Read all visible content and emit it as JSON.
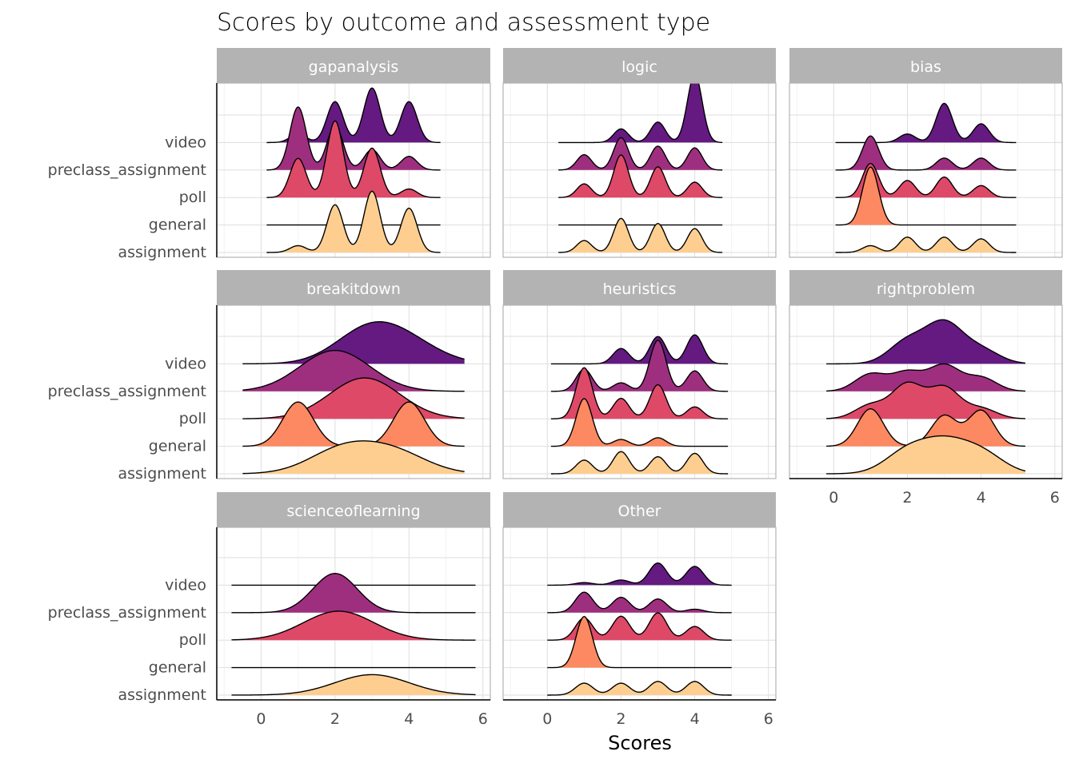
{
  "chart_data": {
    "type": "ridgeline",
    "title": "Scores by outcome and assessment type",
    "xlabel": "Scores",
    "ylabel": "",
    "xlim": [
      -1.2,
      6.2
    ],
    "x_ticks": [
      0,
      2,
      4,
      6
    ],
    "x_tick_labels": [
      "0",
      "2",
      "4",
      "6"
    ],
    "y_categories": [
      "assignment",
      "general",
      "poll",
      "preclass_assignment",
      "video"
    ],
    "colors": {
      "assignment": "#FECE91",
      "general": "#FC8961",
      "poll": "#DE4968",
      "preclass_assignment": "#9E2F7F",
      "video": "#641A80"
    },
    "grid": true,
    "legend": "none",
    "panels": [
      {
        "name": "gapanalysis",
        "ridges": [
          {
            "category": "assignment",
            "range": [
              0.15,
              4.85
            ],
            "sd": 0.22,
            "scale": 0.62,
            "peaks": [
              [
                1,
                0.4
              ],
              [
                2,
                2.8
              ],
              [
                3,
                3.6
              ],
              [
                4,
                2.6
              ]
            ]
          },
          {
            "category": "general",
            "range": [
              0.15,
              4.85
            ],
            "sd": 0.22,
            "scale": 0.62,
            "peaks": []
          },
          {
            "category": "poll",
            "range": [
              0.15,
              4.85
            ],
            "sd": 0.22,
            "scale": 0.62,
            "peaks": [
              [
                1,
                2.3
              ],
              [
                2,
                4.5
              ],
              [
                3,
                2.9
              ],
              [
                4,
                0.5
              ]
            ]
          },
          {
            "category": "preclass_assignment",
            "range": [
              0.15,
              4.85
            ],
            "sd": 0.22,
            "scale": 0.62,
            "peaks": [
              [
                1,
                3.7
              ],
              [
                2,
                2.6
              ],
              [
                3,
                1.2
              ],
              [
                4,
                0.8
              ]
            ]
          },
          {
            "category": "video",
            "range": [
              0.15,
              4.85
            ],
            "sd": 0.22,
            "scale": 0.62,
            "peaks": [
              [
                1,
                0.5
              ],
              [
                2,
                2.4
              ],
              [
                3,
                3.2
              ],
              [
                4,
                2.4
              ]
            ]
          }
        ]
      },
      {
        "name": "logic",
        "ridges": [
          {
            "category": "assignment",
            "range": [
              0.3,
              4.75
            ],
            "sd": 0.2,
            "scale": 0.62,
            "peaks": [
              [
                1,
                0.7
              ],
              [
                2,
                2.0
              ],
              [
                3,
                1.7
              ],
              [
                4,
                1.4
              ]
            ]
          },
          {
            "category": "general",
            "range": [
              0.3,
              4.75
            ],
            "sd": 0.2,
            "scale": 0.62,
            "peaks": []
          },
          {
            "category": "poll",
            "range": [
              0.3,
              4.75
            ],
            "sd": 0.2,
            "scale": 0.62,
            "peaks": [
              [
                1,
                0.8
              ],
              [
                2,
                2.5
              ],
              [
                3,
                1.8
              ],
              [
                4,
                0.9
              ]
            ]
          },
          {
            "category": "preclass_assignment",
            "range": [
              0.3,
              4.75
            ],
            "sd": 0.2,
            "scale": 0.62,
            "peaks": [
              [
                1,
                0.9
              ],
              [
                2,
                1.9
              ],
              [
                3,
                1.4
              ],
              [
                4,
                1.3
              ]
            ]
          },
          {
            "category": "video",
            "range": [
              0.3,
              4.75
            ],
            "sd": 0.2,
            "scale": 0.62,
            "peaks": [
              [
                2,
                0.8
              ],
              [
                3,
                1.2
              ],
              [
                4,
                4.0
              ]
            ]
          }
        ]
      },
      {
        "name": "bias",
        "ridges": [
          {
            "category": "assignment",
            "range": [
              0.05,
              4.95
            ],
            "sd": 0.22,
            "scale": 0.62,
            "peaks": [
              [
                1,
                0.4
              ],
              [
                2,
                0.9
              ],
              [
                3,
                0.9
              ],
              [
                4,
                0.8
              ]
            ]
          },
          {
            "category": "general",
            "range": [
              0.05,
              4.95
            ],
            "sd": 0.22,
            "scale": 0.62,
            "peaks": [
              [
                1,
                3.4
              ]
            ]
          },
          {
            "category": "poll",
            "range": [
              0.05,
              4.95
            ],
            "sd": 0.22,
            "scale": 0.62,
            "peaks": [
              [
                1,
                2.0
              ],
              [
                2,
                1.0
              ],
              [
                3,
                1.2
              ],
              [
                4,
                0.7
              ]
            ]
          },
          {
            "category": "preclass_assignment",
            "range": [
              0.05,
              4.95
            ],
            "sd": 0.22,
            "scale": 0.62,
            "peaks": [
              [
                1,
                2.0
              ],
              [
                3,
                0.7
              ],
              [
                4,
                0.7
              ]
            ]
          },
          {
            "category": "video",
            "range": [
              0.05,
              4.95
            ],
            "sd": 0.22,
            "scale": 0.62,
            "peaks": [
              [
                2,
                0.5
              ],
              [
                3,
                2.3
              ],
              [
                4,
                1.1
              ]
            ]
          }
        ]
      },
      {
        "name": "breakitdown",
        "ridges": [
          {
            "category": "assignment",
            "range": [
              -0.5,
              5.5
            ],
            "sd": 0.9,
            "scale": 0.62,
            "peaks": [
              [
                2.2,
                1.4
              ],
              [
                3.6,
                1.2
              ]
            ]
          },
          {
            "category": "general",
            "range": [
              -0.5,
              5.5
            ],
            "sd": 0.42,
            "scale": 0.62,
            "peaks": [
              [
                1,
                2.6
              ],
              [
                4,
                2.6
              ]
            ]
          },
          {
            "category": "poll",
            "range": [
              -0.5,
              5.5
            ],
            "sd": 0.95,
            "scale": 0.62,
            "peaks": [
              [
                2.8,
                2.4
              ]
            ]
          },
          {
            "category": "preclass_assignment",
            "range": [
              -0.5,
              5.5
            ],
            "sd": 0.95,
            "scale": 0.62,
            "peaks": [
              [
                2.0,
                2.4
              ]
            ]
          },
          {
            "category": "video",
            "range": [
              -0.5,
              5.5
            ],
            "sd": 0.9,
            "scale": 0.62,
            "peaks": [
              [
                2.9,
                1.9
              ],
              [
                4.0,
                1.0
              ]
            ]
          }
        ]
      },
      {
        "name": "heuristics",
        "ridges": [
          {
            "category": "assignment",
            "range": [
              0.1,
              4.9
            ],
            "sd": 0.22,
            "scale": 0.62,
            "peaks": [
              [
                1,
                0.8
              ],
              [
                2,
                1.3
              ],
              [
                3,
                1.0
              ],
              [
                4,
                1.2
              ]
            ]
          },
          {
            "category": "general",
            "range": [
              0.1,
              4.9
            ],
            "sd": 0.22,
            "scale": 0.62,
            "peaks": [
              [
                1,
                2.8
              ],
              [
                2,
                0.4
              ],
              [
                3,
                0.5
              ]
            ]
          },
          {
            "category": "poll",
            "range": [
              0.1,
              4.9
            ],
            "sd": 0.22,
            "scale": 0.62,
            "peaks": [
              [
                1,
                3.0
              ],
              [
                2,
                1.2
              ],
              [
                3,
                2.0
              ],
              [
                4,
                0.7
              ]
            ]
          },
          {
            "category": "preclass_assignment",
            "range": [
              0.1,
              4.9
            ],
            "sd": 0.22,
            "scale": 0.62,
            "peaks": [
              [
                1,
                1.3
              ],
              [
                2,
                0.5
              ],
              [
                3,
                3.0
              ],
              [
                4,
                1.2
              ]
            ]
          },
          {
            "category": "video",
            "range": [
              0.1,
              4.9
            ],
            "sd": 0.22,
            "scale": 0.62,
            "peaks": [
              [
                2,
                0.9
              ],
              [
                3,
                1.6
              ],
              [
                4,
                1.7
              ]
            ]
          }
        ]
      },
      {
        "name": "rightproblem",
        "ridges": [
          {
            "category": "assignment",
            "range": [
              -0.2,
              5.2
            ],
            "sd": 0.6,
            "scale": 0.62,
            "peaks": [
              [
                2,
                1.3
              ],
              [
                3,
                1.6
              ],
              [
                4,
                1.2
              ]
            ]
          },
          {
            "category": "general",
            "range": [
              -0.2,
              5.2
            ],
            "sd": 0.35,
            "scale": 0.62,
            "peaks": [
              [
                1,
                2.2
              ],
              [
                3,
                1.8
              ],
              [
                4,
                2.1
              ]
            ]
          },
          {
            "category": "poll",
            "range": [
              -0.2,
              5.2
            ],
            "sd": 0.42,
            "scale": 0.62,
            "peaks": [
              [
                1,
                0.8
              ],
              [
                2,
                2.0
              ],
              [
                3,
                1.8
              ],
              [
                4,
                0.6
              ]
            ]
          },
          {
            "category": "preclass_assignment",
            "range": [
              -0.2,
              5.2
            ],
            "sd": 0.42,
            "scale": 0.62,
            "peaks": [
              [
                1,
                1.0
              ],
              [
                2,
                1.1
              ],
              [
                3,
                1.5
              ],
              [
                4,
                0.8
              ]
            ]
          },
          {
            "category": "video",
            "range": [
              -0.2,
              5.2
            ],
            "sd": 0.5,
            "scale": 0.62,
            "peaks": [
              [
                2,
                1.3
              ],
              [
                3,
                2.3
              ],
              [
                4,
                0.8
              ]
            ]
          }
        ]
      },
      {
        "name": "scienceoflearning",
        "ridges": [
          {
            "category": "assignment",
            "range": [
              -0.8,
              5.8
            ],
            "sd": 1.0,
            "scale": 0.62,
            "peaks": [
              [
                3,
                1.2
              ]
            ]
          },
          {
            "category": "general",
            "range": [
              -0.8,
              5.8
            ],
            "sd": 1.0,
            "scale": 0.62,
            "peaks": []
          },
          {
            "category": "poll",
            "range": [
              -0.8,
              5.8
            ],
            "sd": 0.95,
            "scale": 0.62,
            "peaks": [
              [
                2.1,
                1.7
              ]
            ]
          },
          {
            "category": "preclass_assignment",
            "range": [
              -0.8,
              5.8
            ],
            "sd": 0.6,
            "scale": 0.62,
            "peaks": [
              [
                2,
                2.3
              ]
            ]
          },
          {
            "category": "video",
            "range": [
              -0.8,
              5.8
            ],
            "sd": 0.6,
            "scale": 0.62,
            "peaks": []
          }
        ]
      },
      {
        "name": "Other",
        "ridges": [
          {
            "category": "assignment",
            "range": [
              0,
              5
            ],
            "sd": 0.24,
            "scale": 0.62,
            "peaks": [
              [
                1,
                0.7
              ],
              [
                2,
                0.7
              ],
              [
                3,
                0.8
              ],
              [
                4,
                0.8
              ]
            ]
          },
          {
            "category": "general",
            "range": [
              0,
              5
            ],
            "sd": 0.22,
            "scale": 0.62,
            "peaks": [
              [
                1,
                3.0
              ]
            ]
          },
          {
            "category": "poll",
            "range": [
              0,
              5
            ],
            "sd": 0.24,
            "scale": 0.62,
            "peaks": [
              [
                1,
                1.3
              ],
              [
                2,
                1.4
              ],
              [
                3,
                1.6
              ],
              [
                4,
                0.8
              ]
            ]
          },
          {
            "category": "preclass_assignment",
            "range": [
              0,
              5
            ],
            "sd": 0.24,
            "scale": 0.62,
            "peaks": [
              [
                1,
                1.2
              ],
              [
                2,
                0.9
              ],
              [
                3,
                0.8
              ],
              [
                4,
                0.2
              ]
            ]
          },
          {
            "category": "video",
            "range": [
              0,
              5
            ],
            "sd": 0.24,
            "scale": 0.62,
            "peaks": [
              [
                1,
                0.15
              ],
              [
                2,
                0.3
              ],
              [
                3,
                1.3
              ],
              [
                4,
                1.1
              ]
            ]
          }
        ]
      }
    ]
  }
}
